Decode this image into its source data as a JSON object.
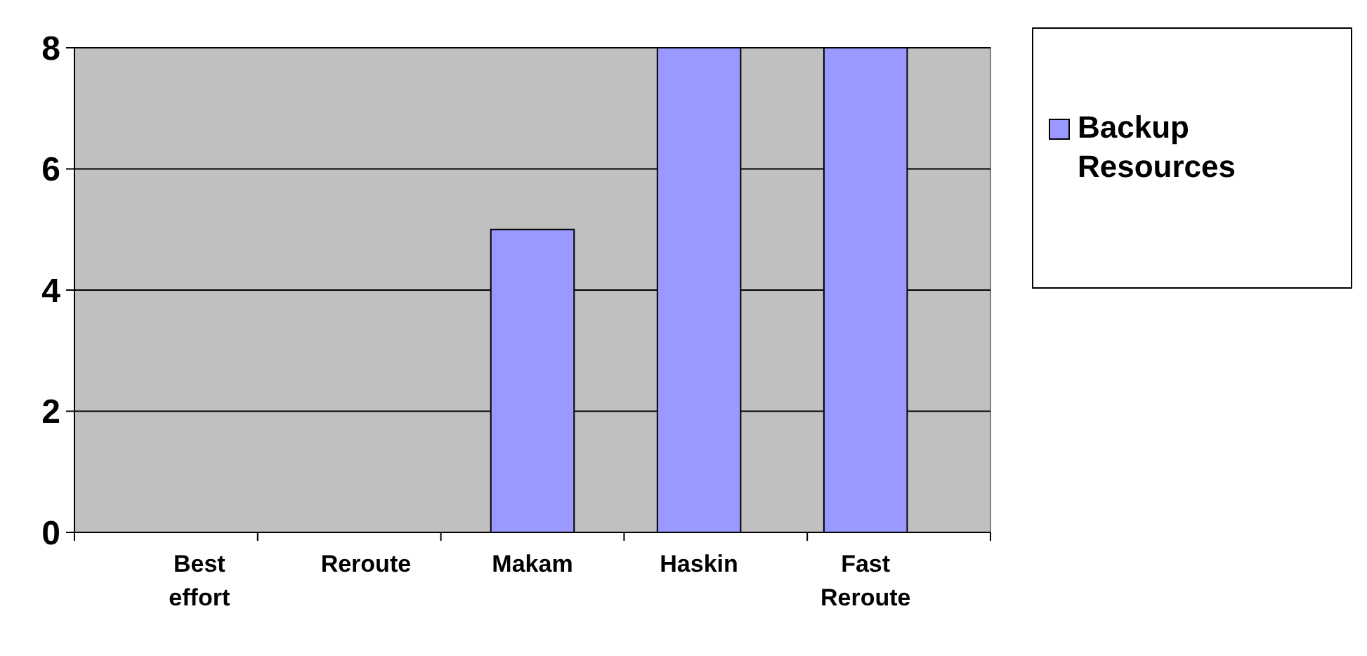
{
  "chart_data": {
    "type": "bar",
    "categories": [
      "Best effort",
      "Reroute",
      "Makam",
      "Haskin",
      "Fast Reroute"
    ],
    "series": [
      {
        "name": "Backup Resources",
        "color": "#9999ff",
        "values": [
          0,
          0,
          5,
          8,
          8
        ]
      }
    ],
    "ylim": [
      0,
      8
    ],
    "yticks": [
      0,
      2,
      4,
      6,
      8
    ],
    "grid": "y",
    "legend": "right"
  }
}
